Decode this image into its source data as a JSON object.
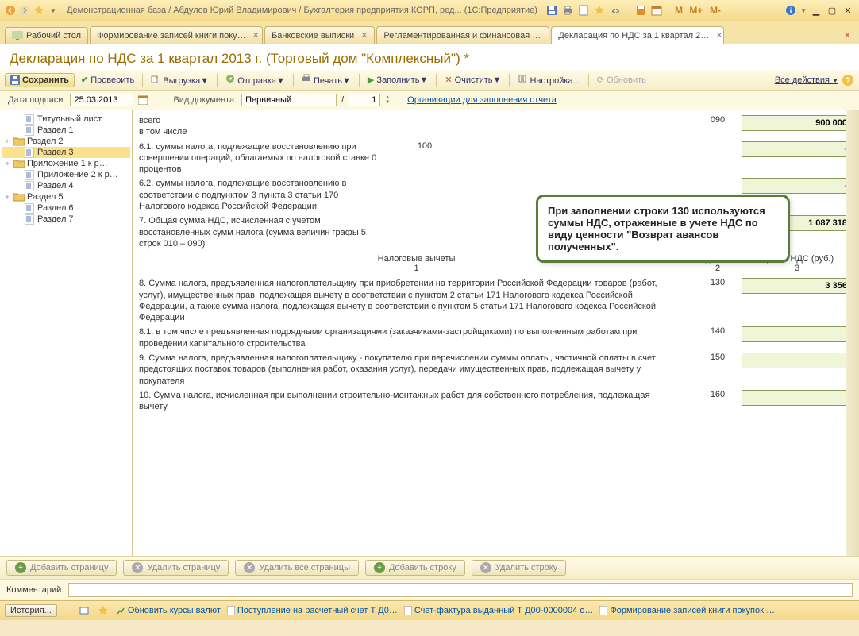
{
  "titlebar": {
    "title": "Демонстрационная база / Абдулов Юрий Владимирович / Бухгалтерия предприятия КОРП, ред...  (1С:Предприятие)",
    "m_labels": [
      "M",
      "M+",
      "M-"
    ]
  },
  "tabs": [
    {
      "label": "Рабочий стол",
      "closable": false,
      "first": true
    },
    {
      "label": "Формирование записей книги поку…",
      "closable": true
    },
    {
      "label": "Банковские выписки",
      "closable": true
    },
    {
      "label": "Регламентированная и финансовая …",
      "closable": true
    },
    {
      "label": "Декларация по НДС за 1 квартал 2…",
      "closable": true,
      "active": true
    }
  ],
  "doc_title": "Декларация по НДС за 1 квартал 2013 г. (Торговый дом \"Комплексный\") *",
  "toolbar": {
    "save": "Сохранить",
    "check": "Проверить",
    "export": "Выгрузка",
    "send": "Отправка",
    "print": "Печать",
    "fill": "Заполнить",
    "clear": "Очистить",
    "settings": "Настройка...",
    "refresh": "Обновить",
    "all_actions": "Все действия"
  },
  "params": {
    "date_label": "Дата подписи:",
    "date_value": "25.03.2013",
    "doctype_label": "Вид документа:",
    "doctype_value": "Первичный",
    "page_sep": "/",
    "page_num": "1",
    "org_link": "Организации для заполнения отчета"
  },
  "tree": [
    {
      "label": "Титульный лист",
      "type": "doc",
      "indent": 1
    },
    {
      "label": "Раздел 1",
      "type": "doc",
      "indent": 1
    },
    {
      "label": "Раздел 2",
      "type": "folder",
      "exp": "+",
      "indent": 0
    },
    {
      "label": "Раздел 3",
      "type": "doc",
      "indent": 1,
      "sel": true
    },
    {
      "label": "Приложение 1 к р…",
      "type": "folder",
      "exp": "+",
      "indent": 0
    },
    {
      "label": "Приложение 2 к р…",
      "type": "doc",
      "indent": 1
    },
    {
      "label": "Раздел 4",
      "type": "doc",
      "indent": 1
    },
    {
      "label": "Раздел 5",
      "type": "folder",
      "exp": "+",
      "indent": 0
    },
    {
      "label": "Раздел 6",
      "type": "doc",
      "indent": 1
    },
    {
      "label": "Раздел 7",
      "type": "doc",
      "indent": 1
    }
  ],
  "form": {
    "row_all": {
      "d1": "всего",
      "d2": "в том числе",
      "code": "090",
      "val": "900 000"
    },
    "row61": {
      "desc": "6.1. суммы налога, подлежащие восстановлению при совершении операций, облагаемых по налоговой ставке 0 процентов",
      "code": "100",
      "val": "-"
    },
    "row62": {
      "desc": "6.2. суммы налога, подлежащие восстановлению в соответствии с подпунктом 3 пункта 3 статьи 170 Налогового кодекса Российской Федерации",
      "code": "",
      "val": "-"
    },
    "row7": {
      "desc": "7. Общая сумма НДС, исчисленная с учетом восстановленных сумм налога (сумма величин графы 5 строк 010 – 090)",
      "code": "",
      "val": "1 087 318"
    },
    "headers": {
      "center": "Налоговые вычеты",
      "c1": "1",
      "code": "Код строки",
      "c2": "2",
      "sum": "Сумма НДС (руб.)",
      "c3": "3"
    },
    "row8": {
      "desc": "8. Сумма налога, предъявленная налогоплательщику при приобретении на территории Российской Федерации товаров (работ, услуг), имущественных прав, подлежащая вычету в соответствии с пунктом 2 статьи 171 Налогового кодекса Российской Федерации, а также сумма налога, подлежащая вычету в соответствии с пунктом 5 статьи 171 Налогового кодекса Российской Федерации",
      "code": "130",
      "val": "3 356"
    },
    "row81": {
      "desc": "8.1. в том числе предъявленная подрядными организациями (заказчиками-застройщиками) по выполненным работам при проведении капитального строительства",
      "code": "140",
      "val": ""
    },
    "row9": {
      "desc": "9. Сумма налога, предъявленная налогоплательщику - покупателю при перечислении суммы оплаты, частичной оплаты в счет предстоящих поставок товаров (выполнения работ, оказания услуг), передачи имущественных прав, подлежащая вычету у покупателя",
      "code": "150",
      "val": ""
    },
    "row10": {
      "desc": "10. Сумма налога, исчисленная при выполнении строительно-монтажных работ для собственного потребления, подлежащая вычету",
      "code": "160",
      "val": ""
    }
  },
  "callout": "При заполнении строки 130 используются суммы НДС, отраженные в учете НДС по виду ценности \"Возврат авансов полученных\".",
  "footer_buttons": {
    "add_page": "Добавить страницу",
    "del_page": "Удалить страницу",
    "del_all": "Удалить все страницы",
    "add_row": "Добавить строку",
    "del_row": "Удалить строку"
  },
  "comment_label": "Комментарий:",
  "status": {
    "history": "История...",
    "s1": "Обновить курсы валют",
    "s2": "Поступление на расчетный счет Т Д0…",
    "s3": "Счет-фактура выданный Т Д00-0000004 о…",
    "s4": "Формирование записей книги покупок …"
  },
  "colors": {
    "accent": "#9c6d00",
    "valbox_border": "#8a9a5a",
    "valbox_bg": "#f0f5d8",
    "callout_border": "#5a7c3a",
    "green": "#4a9a3c",
    "red": "#d44"
  }
}
